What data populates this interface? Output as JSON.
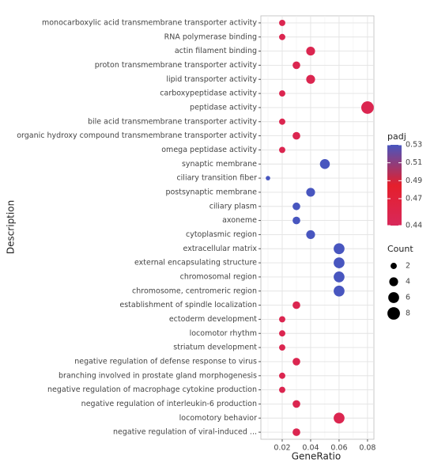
{
  "chart_data": {
    "type": "scatter",
    "x_label": "GeneRatio",
    "y_label": "Description",
    "categories": [
      "monocarboxylic acid transmembrane transporter activity",
      "RNA polymerase binding",
      "actin filament binding",
      "proton transmembrane transporter activity",
      "lipid transporter activity",
      "carboxypeptidase activity",
      "peptidase activity",
      "bile acid transmembrane transporter activity",
      "organic hydroxy compound transmembrane transporter activity",
      "omega peptidase activity",
      "synaptic membrane",
      "ciliary transition fiber",
      "postsynaptic membrane",
      "ciliary plasm",
      "axoneme",
      "cytoplasmic region",
      "extracellular matrix",
      "external encapsulating structure",
      "chromosomal region",
      "chromosome, centromeric region",
      "establishment of spindle localization",
      "ectoderm development",
      "locomotor rhythm",
      "striatum development",
      "negative regulation of defense response to virus",
      "branching involved in prostate gland morphogenesis",
      "negative regulation of macrophage cytokine production",
      "negative regulation of interleukin-6 production",
      "locomotory behavior",
      "negative regulation of viral-induced ..."
    ],
    "x": [
      0.02,
      0.02,
      0.04,
      0.03,
      0.04,
      0.02,
      0.08,
      0.02,
      0.03,
      0.02,
      0.05,
      0.01,
      0.04,
      0.03,
      0.03,
      0.04,
      0.06,
      0.06,
      0.06,
      0.06,
      0.03,
      0.02,
      0.02,
      0.02,
      0.03,
      0.02,
      0.02,
      0.03,
      0.06,
      0.03
    ],
    "count": [
      2,
      2,
      4,
      3,
      4,
      2,
      8,
      2,
      3,
      2,
      5,
      1,
      4,
      3,
      3,
      4,
      6,
      6,
      6,
      6,
      3,
      2,
      2,
      2,
      3,
      2,
      2,
      3,
      6,
      3
    ],
    "padj": [
      0.45,
      0.45,
      0.45,
      0.45,
      0.45,
      0.45,
      0.45,
      0.45,
      0.45,
      0.45,
      0.53,
      0.53,
      0.53,
      0.53,
      0.53,
      0.53,
      0.53,
      0.53,
      0.53,
      0.53,
      0.45,
      0.45,
      0.45,
      0.45,
      0.45,
      0.45,
      0.45,
      0.45,
      0.45,
      0.45
    ],
    "xlim": [
      0.005,
      0.0845
    ],
    "xticks": [
      0.02,
      0.04,
      0.06,
      0.08
    ],
    "xminor": [
      0.01,
      0.03,
      0.05,
      0.07
    ],
    "grid": true,
    "color_legend": {
      "title": "padj",
      "lim": [
        0.44,
        0.53
      ],
      "ticks": [
        0.53,
        0.51,
        0.49,
        0.47,
        0.44
      ],
      "colors": [
        "#d8285a",
        "#e51f2c",
        "#4856bf"
      ]
    },
    "size_legend": {
      "title": "Count",
      "values": [
        2,
        4,
        6,
        8
      ]
    }
  }
}
